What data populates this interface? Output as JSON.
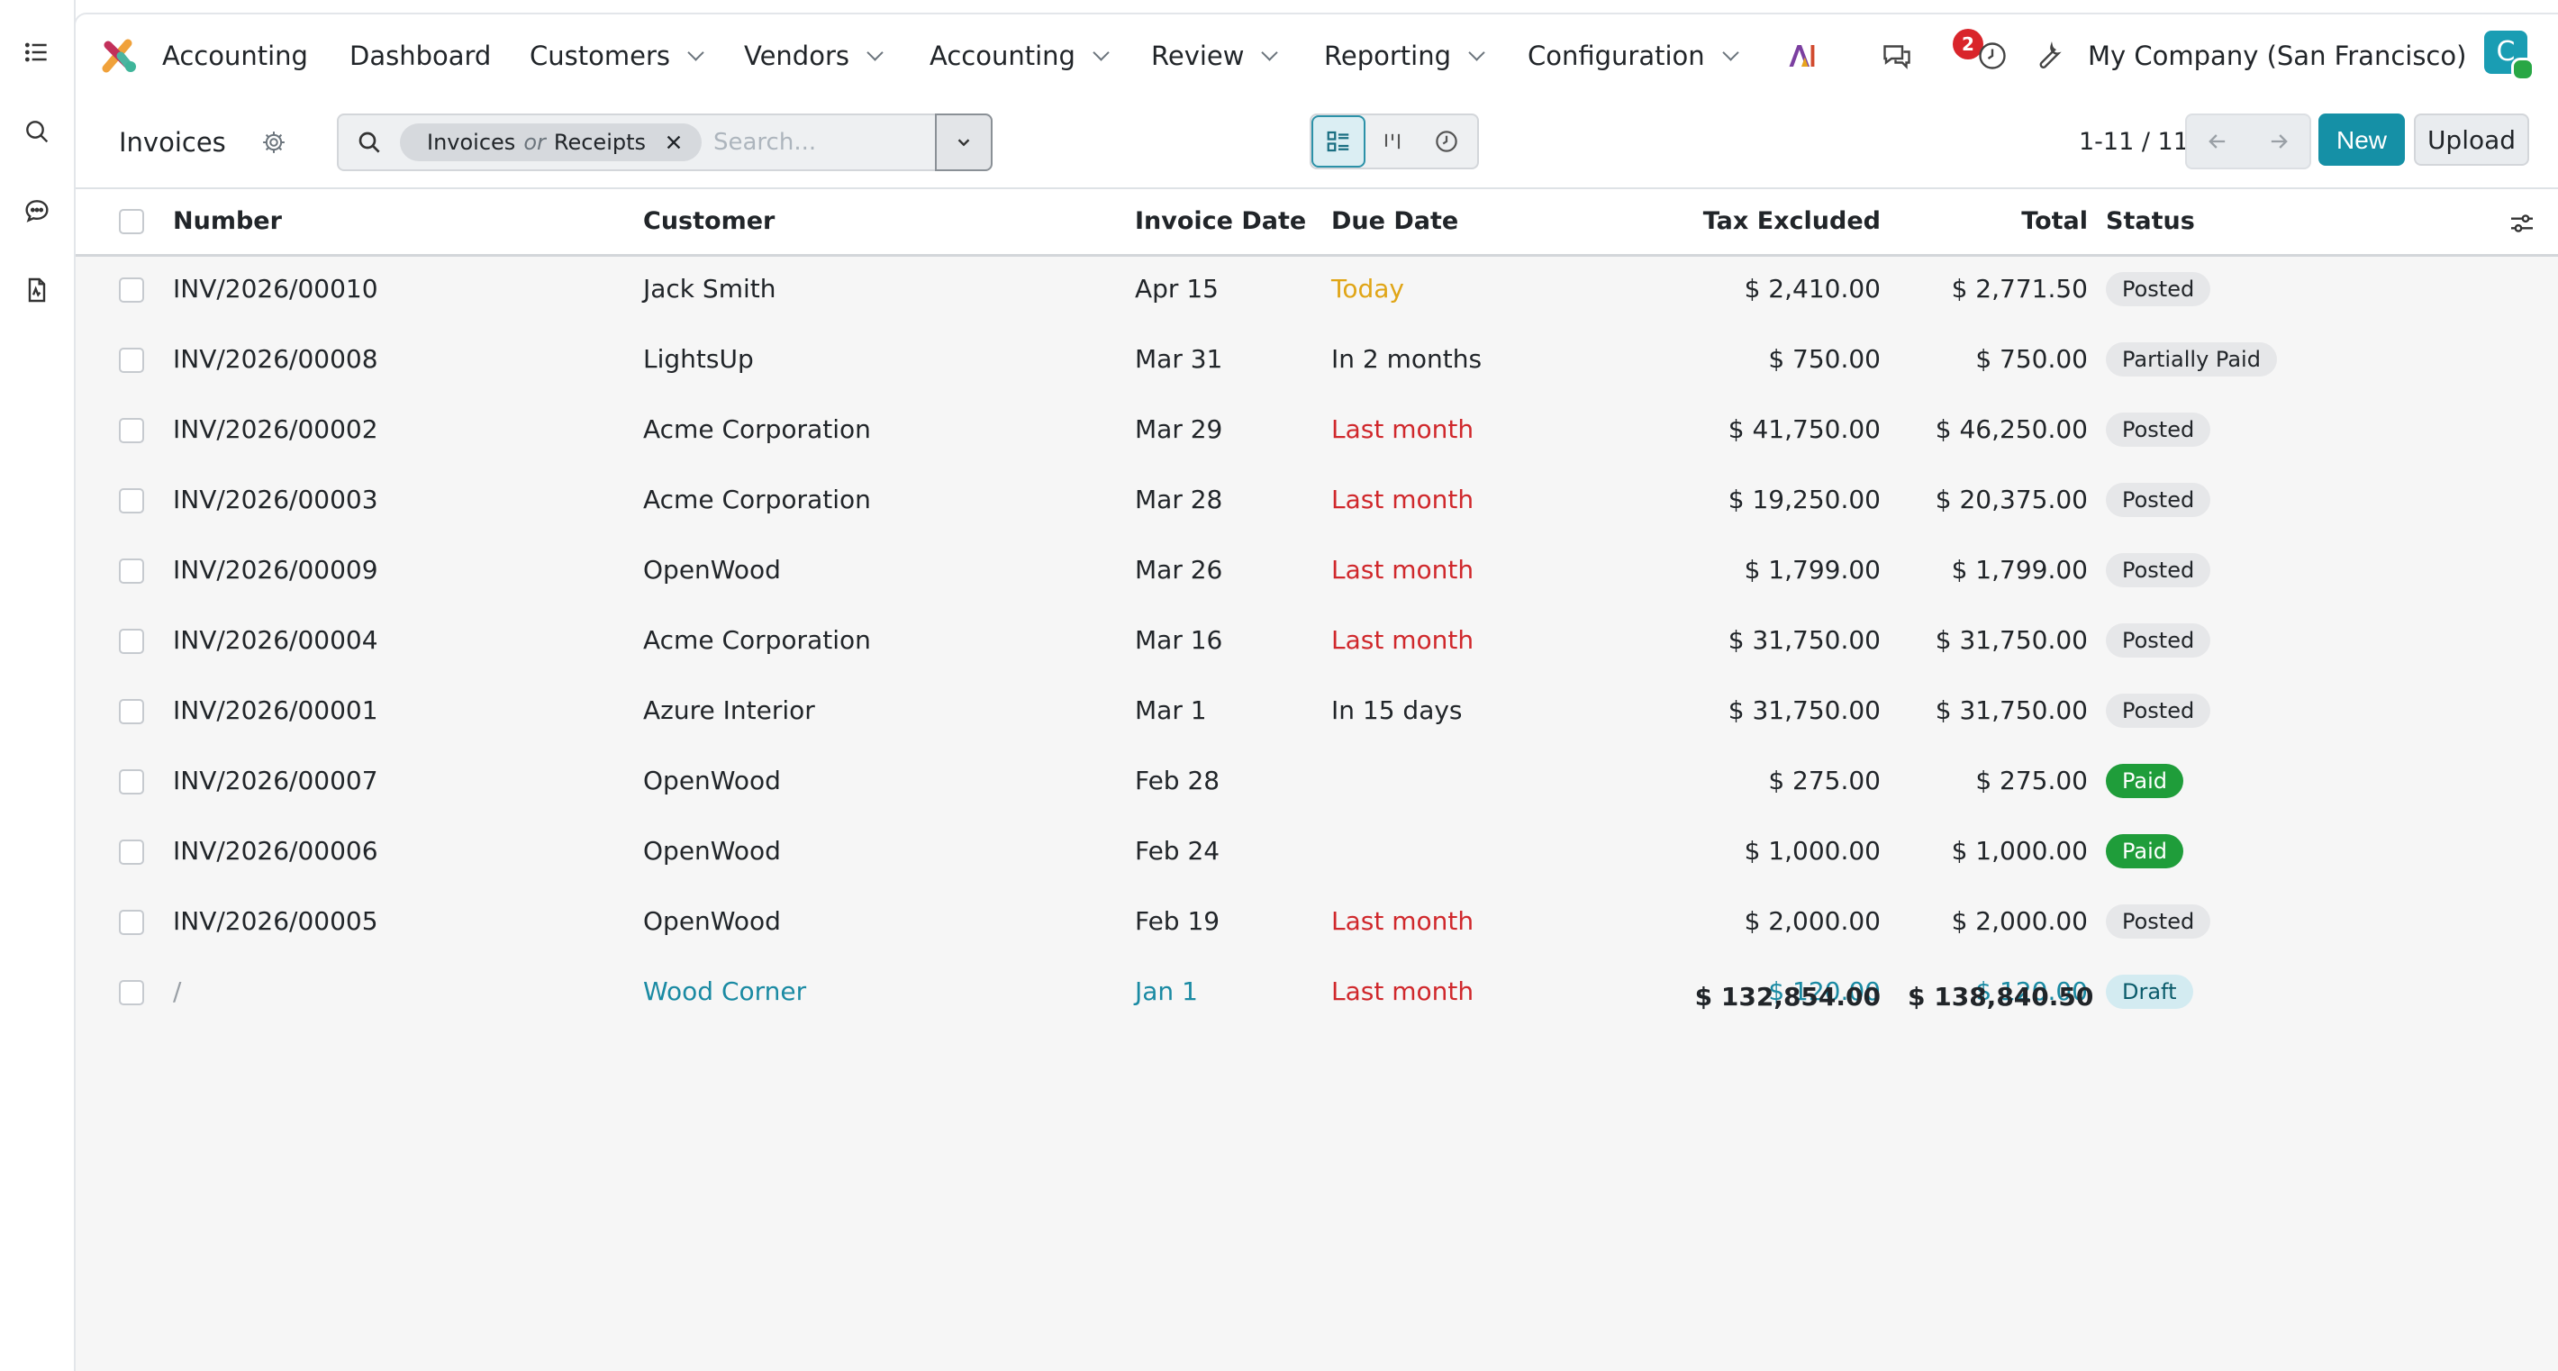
{
  "nav": {
    "app_name": "Accounting",
    "menus": [
      {
        "label": "Dashboard",
        "dropdown": false
      },
      {
        "label": "Customers",
        "dropdown": true
      },
      {
        "label": "Vendors",
        "dropdown": true
      },
      {
        "label": "Accounting",
        "dropdown": true
      },
      {
        "label": "Review",
        "dropdown": true
      },
      {
        "label": "Reporting",
        "dropdown": true
      },
      {
        "label": "Configuration",
        "dropdown": true
      }
    ],
    "messages_count": "2",
    "company": "My Company (San Francisco)",
    "avatar_letter": "C",
    "icons": [
      "ai-icon",
      "chat-icon",
      "clock-icon",
      "wrench-icon"
    ]
  },
  "rail": {
    "icons": [
      "list-icon",
      "search-icon",
      "chat-bubble-icon",
      "document-icon"
    ]
  },
  "control_panel": {
    "title": "Invoices",
    "facet": {
      "first": "Invoices",
      "connector": "or",
      "second": "Receipts"
    },
    "search_placeholder": "Search...",
    "pager": "1-11 / 11",
    "new_label": "New",
    "upload_label": "Upload"
  },
  "table": {
    "columns": [
      "Number",
      "Customer",
      "Invoice Date",
      "Due Date",
      "Tax Excluded",
      "Total",
      "Status"
    ],
    "rows": [
      {
        "number": "INV/2026/00010",
        "customer": "Jack Smith",
        "invoice_date": "Apr 15",
        "due_date": "Today",
        "due_state": "today",
        "tax_excluded": "$ 2,410.00",
        "total": "$ 2,771.50",
        "status": "Posted",
        "status_kind": "posted",
        "draft": false
      },
      {
        "number": "INV/2026/00008",
        "customer": "LightsUp",
        "invoice_date": "Mar 31",
        "due_date": "In 2 months",
        "due_state": "normal",
        "tax_excluded": "$ 750.00",
        "total": "$ 750.00",
        "status": "Partially Paid",
        "status_kind": "partial",
        "draft": false
      },
      {
        "number": "INV/2026/00002",
        "customer": "Acme Corporation",
        "invoice_date": "Mar 29",
        "due_date": "Last month",
        "due_state": "late",
        "tax_excluded": "$ 41,750.00",
        "total": "$ 46,250.00",
        "status": "Posted",
        "status_kind": "posted",
        "draft": false
      },
      {
        "number": "INV/2026/00003",
        "customer": "Acme Corporation",
        "invoice_date": "Mar 28",
        "due_date": "Last month",
        "due_state": "late",
        "tax_excluded": "$ 19,250.00",
        "total": "$ 20,375.00",
        "status": "Posted",
        "status_kind": "posted",
        "draft": false
      },
      {
        "number": "INV/2026/00009",
        "customer": "OpenWood",
        "invoice_date": "Mar 26",
        "due_date": "Last month",
        "due_state": "late",
        "tax_excluded": "$ 1,799.00",
        "total": "$ 1,799.00",
        "status": "Posted",
        "status_kind": "posted",
        "draft": false
      },
      {
        "number": "INV/2026/00004",
        "customer": "Acme Corporation",
        "invoice_date": "Mar 16",
        "due_date": "Last month",
        "due_state": "late",
        "tax_excluded": "$ 31,750.00",
        "total": "$ 31,750.00",
        "status": "Posted",
        "status_kind": "posted",
        "draft": false
      },
      {
        "number": "INV/2026/00001",
        "customer": "Azure Interior",
        "invoice_date": "Mar 1",
        "due_date": "In 15 days",
        "due_state": "normal",
        "tax_excluded": "$ 31,750.00",
        "total": "$ 31,750.00",
        "status": "Posted",
        "status_kind": "posted",
        "draft": false
      },
      {
        "number": "INV/2026/00007",
        "customer": "OpenWood",
        "invoice_date": "Feb 28",
        "due_date": "",
        "due_state": "normal",
        "tax_excluded": "$ 275.00",
        "total": "$ 275.00",
        "status": "Paid",
        "status_kind": "paid",
        "draft": false
      },
      {
        "number": "INV/2026/00006",
        "customer": "OpenWood",
        "invoice_date": "Feb 24",
        "due_date": "",
        "due_state": "normal",
        "tax_excluded": "$ 1,000.00",
        "total": "$ 1,000.00",
        "status": "Paid",
        "status_kind": "paid",
        "draft": false
      },
      {
        "number": "INV/2026/00005",
        "customer": "OpenWood",
        "invoice_date": "Feb 19",
        "due_date": "Last month",
        "due_state": "late",
        "tax_excluded": "$ 2,000.00",
        "total": "$ 2,000.00",
        "status": "Posted",
        "status_kind": "posted",
        "draft": false
      },
      {
        "number": "/",
        "customer": "Wood Corner",
        "invoice_date": "Jan 1",
        "due_date": "Last month",
        "due_state": "late",
        "tax_excluded": "$ 120.00",
        "total": "$ 120.00",
        "status": "Draft",
        "status_kind": "draft",
        "draft": true
      }
    ],
    "totals": {
      "tax_excluded": "$ 132,854.00",
      "total": "$ 138,840.50"
    }
  },
  "colors": {
    "accent": "#1590a6",
    "late": "#d0282c",
    "today": "#e0a516",
    "paid": "#1f9d3a"
  }
}
